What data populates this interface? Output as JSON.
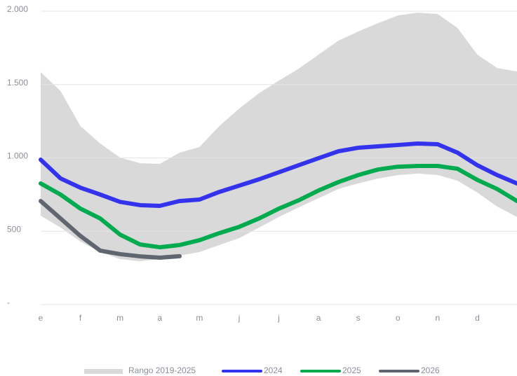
{
  "chart_data": {
    "type": "line",
    "categories": [
      "e",
      null,
      "f",
      null,
      "m",
      null,
      "a",
      null,
      "m",
      null,
      "j",
      null,
      "j",
      null,
      "a",
      null,
      "s",
      null,
      "o",
      null,
      "n",
      null,
      "d",
      null,
      null
    ],
    "ylim": [
      0,
      2000
    ],
    "yticks": [
      {
        "value": 0,
        "label": "-"
      },
      500,
      {
        "value": 1000,
        "label": "1.000"
      },
      {
        "value": 1500,
        "label": "1.500"
      },
      {
        "value": 2000,
        "label": "2.000"
      }
    ],
    "grid": true,
    "legend": "bottom",
    "band": {
      "name": "Rango 2019-2025",
      "color": "#d9d9d9",
      "upper": [
        1585,
        1456,
        1217,
        1098,
        1002,
        964,
        959,
        1036,
        1074,
        1217,
        1336,
        1441,
        1527,
        1608,
        1704,
        1799,
        1862,
        1919,
        1971,
        1990,
        1981,
        1886,
        1704,
        1613,
        1589
      ],
      "lower": [
        606,
        525,
        430,
        358,
        310,
        296,
        310,
        334,
        358,
        406,
        453,
        525,
        597,
        663,
        725,
        788,
        826,
        859,
        883,
        893,
        883,
        845,
        764,
        668,
        597
      ]
    },
    "series": [
      {
        "name": "2024",
        "color": "#3333ee",
        "values": [
          988,
          860,
          797,
          750,
          700,
          678,
          673,
          706,
          716,
          768,
          811,
          854,
          902,
          950,
          998,
          1045,
          1069,
          1079,
          1088,
          1098,
          1093,
          1036,
          950,
          883,
          826
        ]
      },
      {
        "name": "2025",
        "color": "#00aa4f",
        "values": [
          826,
          750,
          654,
          587,
          477,
          410,
          391,
          406,
          439,
          487,
          530,
          587,
          654,
          711,
          778,
          835,
          883,
          921,
          940,
          945,
          945,
          926,
          850,
          788,
          706
        ]
      },
      {
        "name": "2026",
        "color": "#5f6670",
        "values": [
          706,
          587,
          468,
          368,
          344,
          329,
          320,
          330,
          null,
          null,
          null,
          null,
          null,
          null,
          null,
          null,
          null,
          null,
          null,
          null,
          null,
          null,
          null,
          null,
          null
        ]
      }
    ]
  }
}
